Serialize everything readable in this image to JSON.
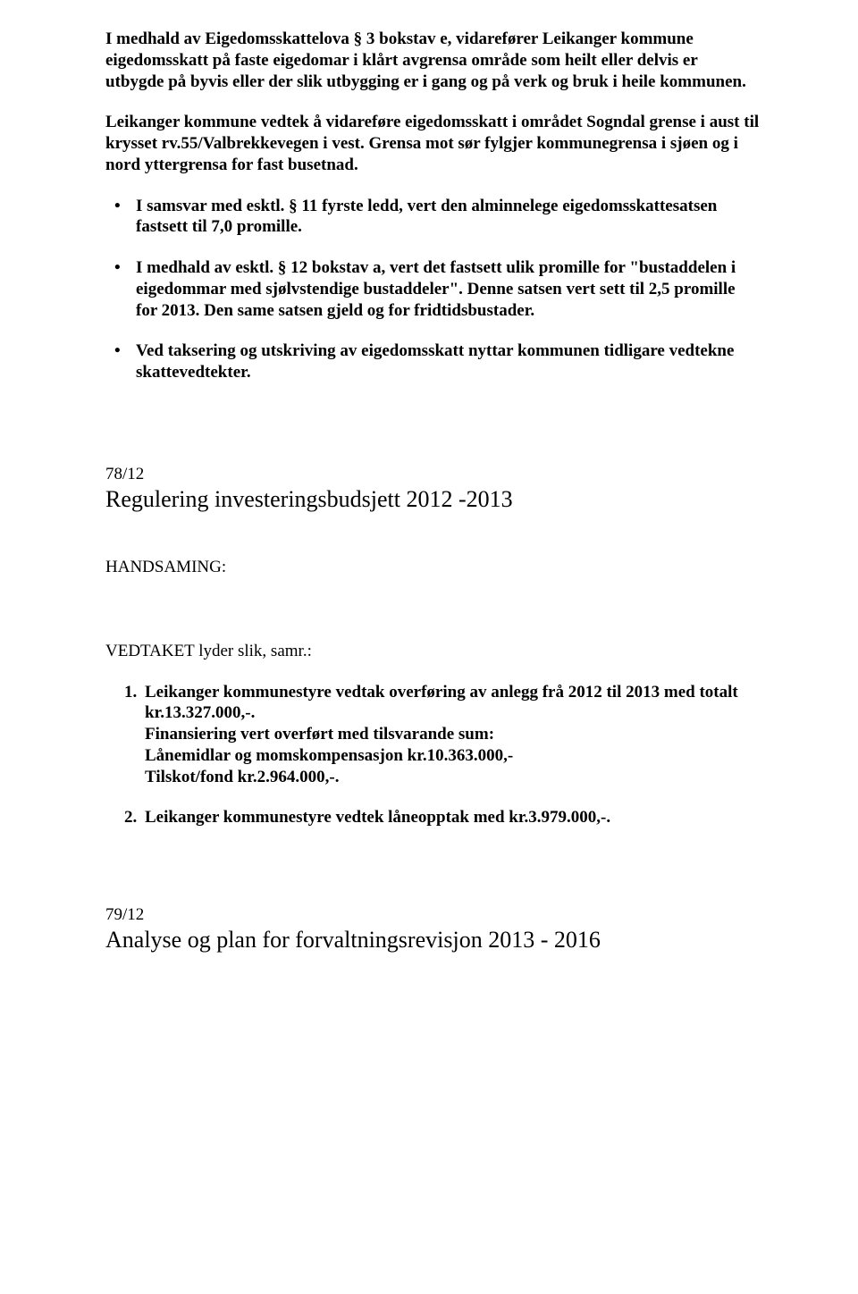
{
  "intro_para1": "I medhald av Eigedomsskattelova § 3 bokstav e, vidarefører Leikanger kommune eigedomsskatt på faste eigedomar i klårt avgrensa område som heilt eller delvis er utbygde på byvis eller der slik utbygging er i gang og på verk og bruk i heile kommunen.",
  "intro_para2": "Leikanger kommune vedtek å vidareføre eigedomsskatt i området Sogndal grense i aust til krysset rv.55/Valbrekkevegen i vest. Grensa mot sør fylgjer kommunegrensa i sjøen og i nord yttergrensa for fast busetnad.",
  "bullets": [
    "I samsvar med esktl. § 11 fyrste ledd, vert den alminnelege eigedomsskattesatsen fastsett til 7,0 promille.",
    "I medhald av esktl. § 12 bokstav a, vert det fastsett ulik promille for \"bustaddelen i eigedommar med sjølvstendige bustaddeler\". Denne satsen vert sett til 2,5 promille for 2013. Den same satsen gjeld og for fridtidsbustader.",
    "Ved taksering og utskriving av eigedomsskatt nyttar kommunen tidligare vedtekne skattevedtekter."
  ],
  "sec78": {
    "num": "78/12",
    "title": "Regulering investeringsbudsjett 2012 -2013",
    "handsaming": "HANDSAMING:",
    "vedtak_label": "VEDTAKET lyder slik, samr.:",
    "item1_line1": "Leikanger kommunestyre vedtak overføring av anlegg frå 2012 til 2013 med totalt kr.13.327.000,-.",
    "item1_line2": "Finansiering vert overført med tilsvarande sum:",
    "item1_line3": "Lånemidlar og momskompensasjon kr.10.363.000,-",
    "item1_line4": "Tilskot/fond kr.2.964.000,-.",
    "item2": "Leikanger kommunestyre vedtek låneopptak med kr.3.979.000,-."
  },
  "sec79": {
    "num": "79/12",
    "title": "Analyse og plan for forvaltningsrevisjon 2013 - 2016"
  }
}
